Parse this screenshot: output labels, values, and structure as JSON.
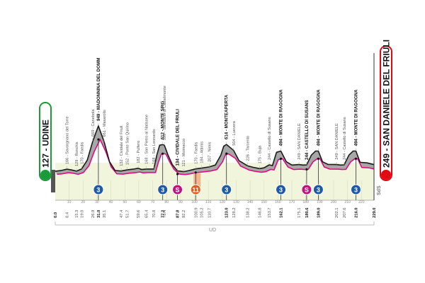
{
  "start": {
    "label": "127 - UDINE",
    "color": "#1a9a3a"
  },
  "finish": {
    "label": "249 - SAN DANIELE DEL FRIULI",
    "color": "#e30613"
  },
  "region_label": "UD",
  "finish_region": "SdS",
  "colors": {
    "profile_fill": "#a7a7a7",
    "profile_line": "#1a1a1a",
    "road_line": "#e6007e",
    "ground": "#f1f5dc",
    "kom": "#1f5aa6",
    "sprint": "#c0137f",
    "feed": "#e25a1c"
  },
  "profile": [
    [
      0,
      127
    ],
    [
      4,
      140
    ],
    [
      8.4,
      166
    ],
    [
      12,
      150
    ],
    [
      15.3,
      129
    ],
    [
      19,
      170
    ],
    [
      23,
      330
    ],
    [
      26.9,
      669
    ],
    [
      31,
      949
    ],
    [
      35.1,
      661
    ],
    [
      39,
      300
    ],
    [
      43,
      140
    ],
    [
      47.4,
      132
    ],
    [
      51.7,
      152
    ],
    [
      56,
      165
    ],
    [
      59.6,
      182
    ],
    [
      62,
      160
    ],
    [
      65.4,
      168
    ],
    [
      70.8,
      168
    ],
    [
      73,
      420
    ],
    [
      75,
      600
    ],
    [
      77.2,
      612
    ],
    [
      78.4,
      599
    ],
    [
      81,
      420
    ],
    [
      84,
      250
    ],
    [
      87.8,
      134
    ],
    [
      92.2,
      121
    ],
    [
      96,
      140
    ],
    [
      100.9,
      170
    ],
    [
      105.2,
      184
    ],
    [
      110.7,
      207
    ],
    [
      115,
      240
    ],
    [
      119,
      420
    ],
    [
      121,
      580
    ],
    [
      123,
      614
    ],
    [
      128.2,
      504
    ],
    [
      132,
      320
    ],
    [
      138.2,
      226
    ],
    [
      142,
      200
    ],
    [
      146.8,
      175
    ],
    [
      150,
      190
    ],
    [
      153.7,
      244
    ],
    [
      156,
      230
    ],
    [
      159,
      470
    ],
    [
      162.1,
      494
    ],
    [
      166,
      300
    ],
    [
      170,
      240
    ],
    [
      175.1,
      249
    ],
    [
      178,
      240
    ],
    [
      180.6,
      244
    ],
    [
      184,
      420
    ],
    [
      187,
      494
    ],
    [
      189,
      494
    ],
    [
      192,
      300
    ],
    [
      196,
      250
    ],
    [
      202.1,
      249
    ],
    [
      205,
      240
    ],
    [
      207.6,
      244
    ],
    [
      211,
      420
    ],
    [
      214,
      494
    ],
    [
      216,
      494
    ],
    [
      219,
      290
    ],
    [
      224,
      280
    ],
    [
      227,
      260
    ],
    [
      229,
      249
    ]
  ],
  "places": [
    {
      "km": 8.4,
      "label": "166 - Savorgnano del Torre",
      "bold": false
    },
    {
      "km": 15.3,
      "label": "129 - Ronchis",
      "bold": false
    },
    {
      "km": 19.0,
      "label": "170 - Faedis",
      "bold": false
    },
    {
      "km": 26.9,
      "label": "669 - Canebola",
      "bold": false
    },
    {
      "km": 31.0,
      "label": "949 - MADONNINA DEL DOMM",
      "bold": true
    },
    {
      "km": 35.1,
      "label": "661 - Masarolis",
      "bold": false
    },
    {
      "km": 47.4,
      "label": "132 - Cividale del Friuli",
      "bold": false
    },
    {
      "km": 51.7,
      "label": "152 - Ponte San Quirino",
      "bold": false
    },
    {
      "km": 59.6,
      "label": "182 - Pulfero",
      "bold": false
    },
    {
      "km": 65.4,
      "label": "168 - San Pietro al Natisone",
      "bold": false
    },
    {
      "km": 70.8,
      "label": "168 - San Leonardo",
      "bold": false
    },
    {
      "km": 77.2,
      "label": "612 - MONTE SPIG",
      "bold": true
    },
    {
      "km": 78.4,
      "label": "599 - Santuario di Castelmonte",
      "bold": false
    },
    {
      "km": 87.8,
      "label": "134 - CIVIDALE DEL FRIULI",
      "bold": true
    },
    {
      "km": 92.2,
      "label": "121 - Moimacco",
      "bold": false
    },
    {
      "km": 100.9,
      "label": "170 - Faedis",
      "bold": false
    },
    {
      "km": 105.2,
      "label": "184 - Attimis",
      "bold": false
    },
    {
      "km": 110.7,
      "label": "207 - Nimis",
      "bold": false
    },
    {
      "km": 123.0,
      "label": "614 - MONTEAPERTA",
      "bold": true
    },
    {
      "km": 128.2,
      "label": "504 - Luevera",
      "bold": false
    },
    {
      "km": 138.2,
      "label": "226 - Tarcento",
      "bold": false
    },
    {
      "km": 146.8,
      "label": "175 - Buja",
      "bold": false
    },
    {
      "km": 153.7,
      "label": "244 - Castello di Susans",
      "bold": false
    },
    {
      "km": 162.1,
      "label": "494 - MONTE DI RAGOGNA",
      "bold": true
    },
    {
      "km": 175.1,
      "label": "249 - SAN DANIELE",
      "bold": false
    },
    {
      "km": 180.6,
      "label": "244 - CASTELLO DI SUSANS",
      "bold": true
    },
    {
      "km": 189.0,
      "label": "494 - MONTE DI RAGOGNA",
      "bold": true
    },
    {
      "km": 202.1,
      "label": "249 - SAN DANIELE",
      "bold": false
    },
    {
      "km": 207.6,
      "label": "244 - Castello di Susans",
      "bold": false
    },
    {
      "km": 216.0,
      "label": "494 - MONTE DI RAGOGNA",
      "bold": true
    }
  ],
  "km_labels": [
    {
      "km": 0.0,
      "label": "0.0",
      "bold": true
    },
    {
      "km": 8.4,
      "label": "8.4",
      "bold": false
    },
    {
      "km": 15.3,
      "label": "15.3",
      "bold": false
    },
    {
      "km": 19.0,
      "label": "19.0",
      "bold": false
    },
    {
      "km": 26.9,
      "label": "26.9",
      "bold": false
    },
    {
      "km": 31.0,
      "label": "31.0",
      "bold": true
    },
    {
      "km": 35.1,
      "label": "35.1",
      "bold": false
    },
    {
      "km": 47.4,
      "label": "47.4",
      "bold": false
    },
    {
      "km": 51.7,
      "label": "51.7",
      "bold": false
    },
    {
      "km": 59.6,
      "label": "59.6",
      "bold": false
    },
    {
      "km": 65.4,
      "label": "65.4",
      "bold": false
    },
    {
      "km": 70.8,
      "label": "70.8",
      "bold": false
    },
    {
      "km": 77.2,
      "label": "77.2",
      "bold": true
    },
    {
      "km": 78.4,
      "label": "78.4",
      "bold": false
    },
    {
      "km": 87.8,
      "label": "87.8",
      "bold": true
    },
    {
      "km": 92.2,
      "label": "92.2",
      "bold": false
    },
    {
      "km": 100.9,
      "label": "100.9",
      "bold": false
    },
    {
      "km": 105.2,
      "label": "105.2",
      "bold": false
    },
    {
      "km": 110.7,
      "label": "110.7",
      "bold": false
    },
    {
      "km": 123.0,
      "label": "123.0",
      "bold": true
    },
    {
      "km": 128.2,
      "label": "128.2",
      "bold": false
    },
    {
      "km": 138.2,
      "label": "138.2",
      "bold": false
    },
    {
      "km": 146.8,
      "label": "146.8",
      "bold": false
    },
    {
      "km": 153.7,
      "label": "153.7",
      "bold": false
    },
    {
      "km": 162.1,
      "label": "162.1",
      "bold": true
    },
    {
      "km": 175.1,
      "label": "175.1",
      "bold": false
    },
    {
      "km": 180.6,
      "label": "180.6",
      "bold": true
    },
    {
      "km": 189.0,
      "label": "189.0",
      "bold": true
    },
    {
      "km": 202.1,
      "label": "202.1",
      "bold": false
    },
    {
      "km": 207.6,
      "label": "207.6",
      "bold": false
    },
    {
      "km": 216.0,
      "label": "216.0",
      "bold": true
    },
    {
      "km": 229.0,
      "label": "229.0",
      "bold": true
    }
  ],
  "ticks": [
    "10",
    "20",
    "30",
    "40",
    "50",
    "60",
    "70",
    "80",
    "90",
    "100",
    "110",
    "120",
    "130",
    "140",
    "150",
    "160",
    "170",
    "180",
    "190",
    "200",
    "210",
    "220"
  ],
  "markers": [
    {
      "km": 31.0,
      "type": "kom",
      "label": "3"
    },
    {
      "km": 77.2,
      "type": "kom",
      "label": "3"
    },
    {
      "km": 87.8,
      "type": "sprint",
      "label": "S"
    },
    {
      "km": 100.9,
      "type": "feed",
      "label": "11"
    },
    {
      "km": 123.0,
      "type": "kom",
      "label": "3"
    },
    {
      "km": 162.1,
      "type": "kom",
      "label": "3"
    },
    {
      "km": 180.6,
      "type": "sprint",
      "label": "S"
    },
    {
      "km": 189.0,
      "type": "kom",
      "label": "3"
    },
    {
      "km": 216.0,
      "type": "kom",
      "label": "3"
    }
  ]
}
